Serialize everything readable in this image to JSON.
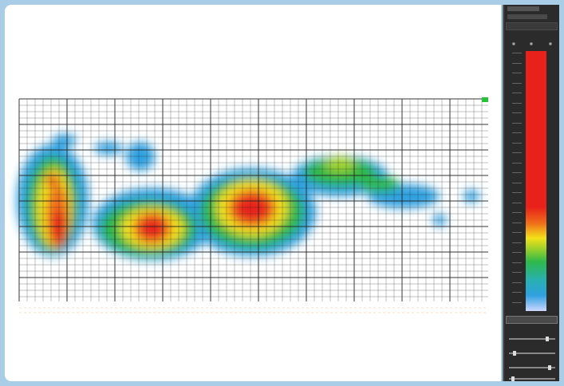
{
  "window": {
    "frame_color": "#a9cde6"
  },
  "heatmap": {
    "grid_color": "#222222",
    "palette": [
      "#2fa0e0",
      "#2fb84a",
      "#9fd12a",
      "#f2e21a",
      "#f06a1a",
      "#e8221a"
    ]
  },
  "side_panel": {
    "scale_colors": [
      "#e8221a",
      "#f2e21a",
      "#2fb84a",
      "#2fa0e0"
    ],
    "sliders": [
      {
        "name": "slider-1",
        "level": 0.85
      },
      {
        "name": "slider-2",
        "level": 0.1
      },
      {
        "name": "slider-3",
        "level": 0.9
      },
      {
        "name": "slider-4",
        "level": 0.05
      }
    ]
  }
}
